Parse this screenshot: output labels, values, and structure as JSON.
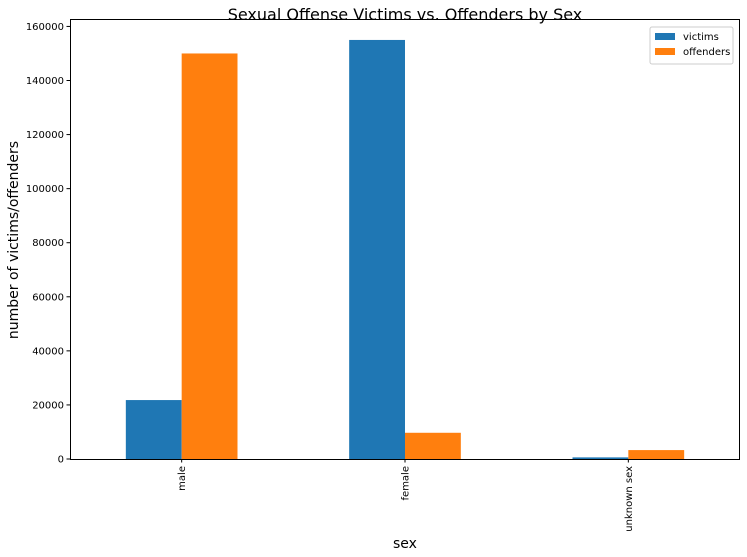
{
  "chart_data": {
    "type": "bar",
    "title": "Sexual Offense Victims vs. Offenders by Sex",
    "xlabel": "sex",
    "ylabel": "number of victims/offenders",
    "categories": [
      "male",
      "female",
      "unknown sex"
    ],
    "series": [
      {
        "name": "victims",
        "color": "#1f77b4",
        "values": [
          21800,
          155000,
          600
        ]
      },
      {
        "name": "offenders",
        "color": "#ff7f0e",
        "values": [
          150000,
          9700,
          3300
        ]
      }
    ],
    "ylim": [
      0,
      162750
    ],
    "yticks": [
      0,
      20000,
      40000,
      60000,
      80000,
      100000,
      120000,
      140000,
      160000
    ],
    "grid": false,
    "legend_position": "top-right"
  }
}
